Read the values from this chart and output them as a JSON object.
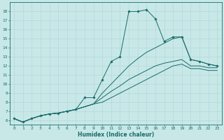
{
  "xlabel": "Humidex (Indice chaleur)",
  "ylabel": "",
  "bg_color": "#c8e8e8",
  "grid_color": "#b0d4d4",
  "line_color": "#1a6b6b",
  "xlim": [
    -0.5,
    23.5
  ],
  "ylim": [
    5.5,
    19.0
  ],
  "yticks": [
    6,
    7,
    8,
    9,
    10,
    11,
    12,
    13,
    14,
    15,
    16,
    17,
    18
  ],
  "xticks": [
    0,
    1,
    2,
    3,
    4,
    5,
    6,
    7,
    8,
    9,
    10,
    11,
    12,
    13,
    14,
    15,
    16,
    17,
    18,
    19,
    20,
    21,
    22,
    23
  ],
  "series": [
    {
      "x": [
        0,
        1,
        2,
        3,
        4,
        5,
        6,
        7,
        8,
        9,
        10,
        11,
        12,
        13,
        14,
        15,
        16,
        17,
        18,
        19,
        20,
        21,
        22,
        23
      ],
      "y": [
        6.2,
        5.8,
        6.2,
        6.5,
        6.7,
        6.8,
        7.0,
        7.2,
        8.5,
        8.5,
        10.5,
        12.5,
        13.0,
        18.0,
        18.0,
        18.2,
        17.2,
        14.7,
        15.2,
        15.2,
        12.7,
        12.5,
        12.2,
        12.0
      ],
      "marker": "D",
      "markersize": 1.8
    },
    {
      "x": [
        0,
        1,
        2,
        3,
        4,
        5,
        6,
        7,
        8,
        9,
        10,
        11,
        12,
        13,
        14,
        15,
        16,
        17,
        18,
        19,
        20,
        21,
        22,
        23
      ],
      "y": [
        6.2,
        5.8,
        6.2,
        6.5,
        6.7,
        6.8,
        7.0,
        7.2,
        7.5,
        7.8,
        9.0,
        10.0,
        11.0,
        12.0,
        12.8,
        13.5,
        14.0,
        14.5,
        15.0,
        15.2,
        12.7,
        12.5,
        12.2,
        12.0
      ],
      "marker": null,
      "markersize": 0
    },
    {
      "x": [
        0,
        1,
        2,
        3,
        4,
        5,
        6,
        7,
        8,
        9,
        10,
        11,
        12,
        13,
        14,
        15,
        16,
        17,
        18,
        19,
        20,
        21,
        22,
        23
      ],
      "y": [
        6.2,
        5.8,
        6.2,
        6.5,
        6.7,
        6.8,
        7.0,
        7.2,
        7.5,
        7.8,
        8.5,
        9.2,
        9.8,
        10.5,
        11.0,
        11.5,
        12.0,
        12.3,
        12.5,
        12.7,
        12.0,
        12.0,
        11.8,
        11.8
      ],
      "marker": null,
      "markersize": 0
    },
    {
      "x": [
        0,
        1,
        2,
        3,
        4,
        5,
        6,
        7,
        8,
        9,
        10,
        11,
        12,
        13,
        14,
        15,
        16,
        17,
        18,
        19,
        20,
        21,
        22,
        23
      ],
      "y": [
        6.2,
        5.8,
        6.2,
        6.5,
        6.7,
        6.8,
        7.0,
        7.2,
        7.5,
        7.8,
        8.0,
        8.5,
        9.0,
        9.5,
        10.0,
        10.5,
        11.0,
        11.5,
        12.0,
        12.2,
        11.7,
        11.7,
        11.5,
        11.5
      ],
      "marker": null,
      "markersize": 0
    }
  ]
}
